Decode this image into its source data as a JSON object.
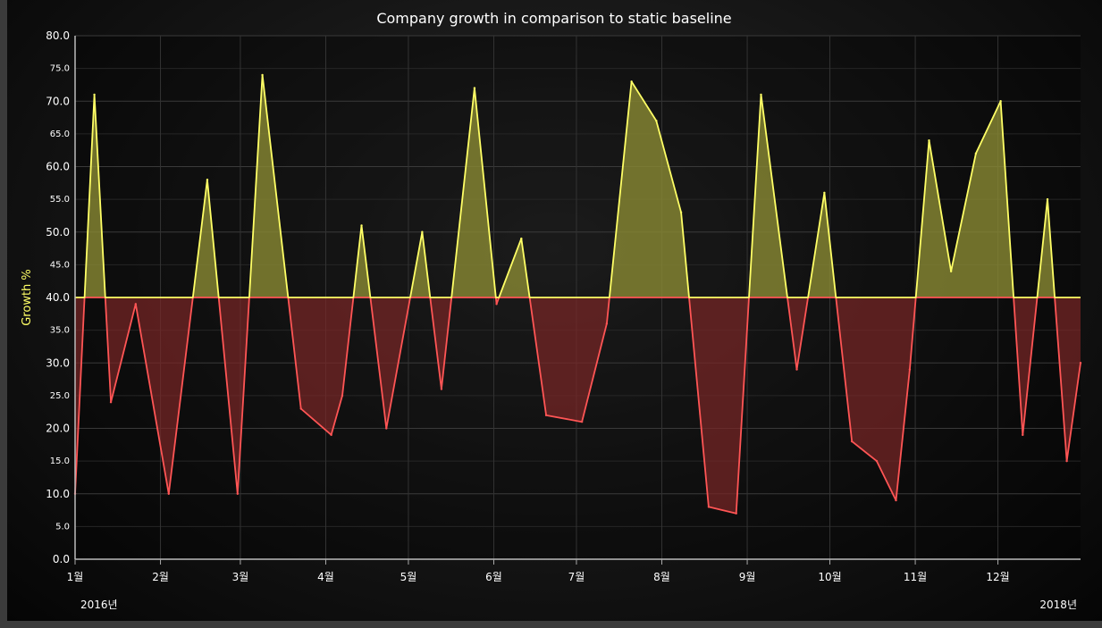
{
  "chart_data": {
    "type": "area",
    "title": "Company growth in comparison to static baseline",
    "ylabel": "Growth %",
    "ylim": [
      0,
      80
    ],
    "baseline": 40,
    "y_ticks_major": [
      "0.0",
      "10.0",
      "20.0",
      "30.0",
      "40.0",
      "50.0",
      "60.0",
      "70.0",
      "80.0"
    ],
    "y_ticks_minor": [
      "5.0",
      "15.0",
      "25.0",
      "35.0",
      "45.0",
      "55.0",
      "65.0",
      "75.0"
    ],
    "x_ticks": [
      "1월",
      "2월",
      "3월",
      "4월",
      "5월",
      "6월",
      "7월",
      "8월",
      "9월",
      "10월",
      "11월",
      "12월"
    ],
    "x_start_label": "2016년",
    "x_end_label": "2018년",
    "x_domain_days": [
      0,
      365
    ],
    "colors": {
      "above": "#ffff66",
      "below": "#ff5555",
      "grid": "#3a3a3a"
    },
    "grid": true,
    "series": [
      {
        "x": [
          0,
          7,
          13,
          22,
          34,
          48,
          59,
          68,
          82,
          93,
          97,
          104,
          113,
          126,
          133,
          145,
          153,
          162,
          171,
          184,
          193,
          202,
          211,
          220,
          230,
          240,
          249,
          262,
          272,
          282,
          291,
          298,
          303,
          310,
          318,
          327,
          336,
          344,
          353,
          360,
          365
        ],
        "values": [
          10,
          71,
          24,
          39,
          10,
          58,
          10,
          74,
          23,
          19,
          25,
          51,
          20,
          50,
          26,
          72,
          39,
          49,
          22,
          21,
          36,
          73,
          67,
          53,
          8,
          7,
          71,
          29,
          56,
          18,
          15,
          9,
          29,
          64,
          44,
          62,
          70,
          19,
          55,
          15,
          30
        ]
      }
    ]
  }
}
